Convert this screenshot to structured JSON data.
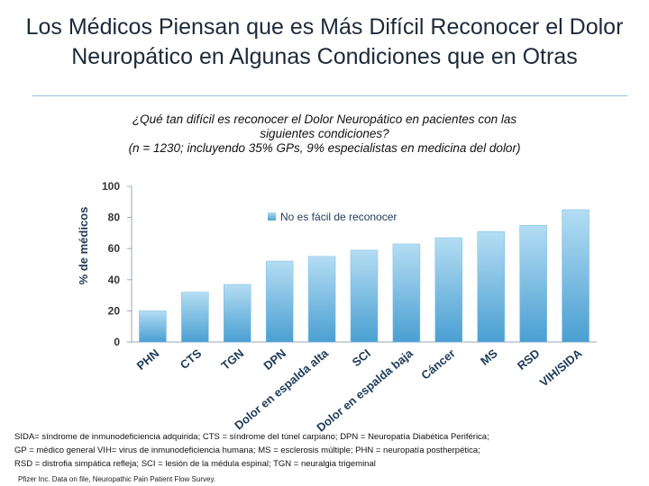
{
  "slide": {
    "title_line1": "Los Médicos Piensan que es Más Difícil Reconocer el Dolor",
    "title_line2": "Neuropático en Algunas Condiciones que en Otras",
    "question_line1": "¿Qué tan difícil es reconocer el Dolor Neuropático en pacientes con  las",
    "question_line2": "siguientes condiciones?",
    "question_line3": "(n = 1230; incluyendo 35% GPs, 9% especialistas en medicina del dolor)",
    "footnote_line1": "SIDA= síndrome de inmunodeficiencia adquirida; CTS = síndrome del túnel carpiano; DPN = Neuropatía Diabética Periférica;",
    "footnote_line2": "GP = médico general VIH= virus de inmunodeficiencia humana; MS = esclerosis múltiple; PHN = neuropatía postherpética;",
    "footnote_line3": "RSD = distrofia simpática refleja; SCI = lesión de la médula espinal; TGN = neuralgia trigeminal",
    "source": "Pfizer Inc. Data on file, Neuropathic Pain Patient Flow Survey."
  },
  "chart_data": {
    "type": "bar",
    "categories": [
      "PHN",
      "CTS",
      "TGN",
      "DPN",
      "Dolor en espalda alta",
      "SCI",
      "Dolor en espalda baja",
      "Cáncer",
      "MS",
      "RSD",
      "VIH/SIDA"
    ],
    "series": [
      {
        "name": "No es fácil de reconocer",
        "values": [
          20,
          32,
          37,
          52,
          55,
          59,
          63,
          67,
          71,
          75,
          85
        ]
      }
    ],
    "ylabel": "% de médicos",
    "xlabel": "",
    "ylim": [
      0,
      100
    ],
    "yticks": [
      0,
      20,
      40,
      60,
      80,
      100
    ],
    "legend_position": "top-center",
    "colors": {
      "bar_top": "#b4ddf3",
      "bar_bottom": "#4a9fd2"
    }
  }
}
